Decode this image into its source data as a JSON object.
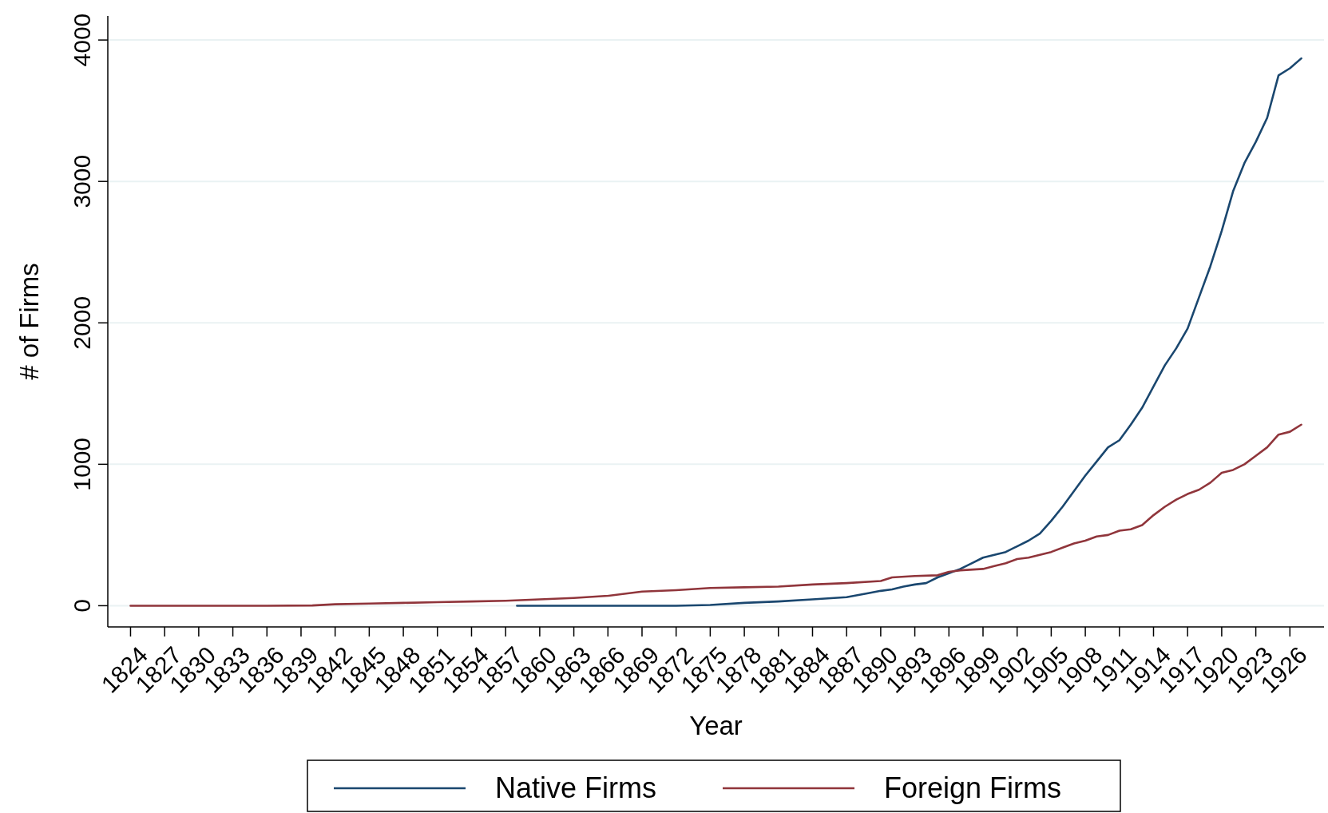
{
  "chart_data": {
    "type": "line",
    "xlabel": "Year",
    "ylabel": "# of Firms",
    "xlim": [
      1822,
      1929
    ],
    "ylim": [
      -150,
      4170
    ],
    "xticks": [
      1824,
      1827,
      1830,
      1833,
      1836,
      1839,
      1842,
      1845,
      1848,
      1851,
      1854,
      1857,
      1860,
      1863,
      1866,
      1869,
      1872,
      1875,
      1878,
      1881,
      1884,
      1887,
      1890,
      1893,
      1896,
      1899,
      1902,
      1905,
      1908,
      1911,
      1914,
      1917,
      1920,
      1923,
      1926
    ],
    "yticks": [
      0,
      1000,
      2000,
      3000,
      4000
    ],
    "grid": "y",
    "legend": "bottom",
    "marker": "none",
    "line_style": "solid",
    "series": [
      {
        "name": "Native Firms",
        "color": "#1a476f",
        "x": [
          1858,
          1860,
          1863,
          1866,
          1869,
          1872,
          1875,
          1878,
          1881,
          1884,
          1887,
          1889,
          1890,
          1891,
          1892,
          1893,
          1894,
          1895,
          1896,
          1897,
          1898,
          1899,
          1900,
          1901,
          1902,
          1903,
          1904,
          1905,
          1906,
          1907,
          1908,
          1909,
          1910,
          1911,
          1912,
          1913,
          1914,
          1915,
          1916,
          1917,
          1918,
          1919,
          1920,
          1921,
          1922,
          1923,
          1924,
          1925,
          1926,
          1927
        ],
        "values": [
          0,
          0,
          0,
          0,
          0,
          0,
          5,
          20,
          30,
          45,
          60,
          90,
          105,
          115,
          135,
          150,
          160,
          200,
          230,
          260,
          300,
          340,
          360,
          380,
          420,
          460,
          510,
          600,
          700,
          810,
          920,
          1020,
          1120,
          1170,
          1280,
          1400,
          1550,
          1700,
          1820,
          1960,
          2180,
          2400,
          2650,
          2930,
          3130,
          3280,
          3450,
          3750,
          3800,
          3870
        ]
      },
      {
        "name": "Foreign Firms",
        "color": "#90353b",
        "x": [
          1824,
          1830,
          1836,
          1840,
          1842,
          1845,
          1848,
          1851,
          1854,
          1857,
          1860,
          1863,
          1866,
          1869,
          1872,
          1875,
          1878,
          1881,
          1884,
          1887,
          1890,
          1891,
          1893,
          1895,
          1896,
          1897,
          1899,
          1900,
          1901,
          1902,
          1903,
          1904,
          1905,
          1906,
          1907,
          1908,
          1909,
          1910,
          1911,
          1912,
          1913,
          1914,
          1915,
          1916,
          1917,
          1918,
          1919,
          1920,
          1921,
          1922,
          1923,
          1924,
          1925,
          1926,
          1927
        ],
        "values": [
          0,
          0,
          0,
          2,
          10,
          15,
          20,
          25,
          30,
          35,
          45,
          55,
          70,
          100,
          110,
          125,
          130,
          135,
          150,
          160,
          175,
          200,
          210,
          215,
          240,
          250,
          260,
          280,
          300,
          330,
          340,
          360,
          380,
          410,
          440,
          460,
          490,
          500,
          530,
          540,
          570,
          640,
          700,
          750,
          790,
          820,
          870,
          940,
          960,
          1000,
          1060,
          1120,
          1210,
          1230,
          1280
        ]
      }
    ]
  }
}
